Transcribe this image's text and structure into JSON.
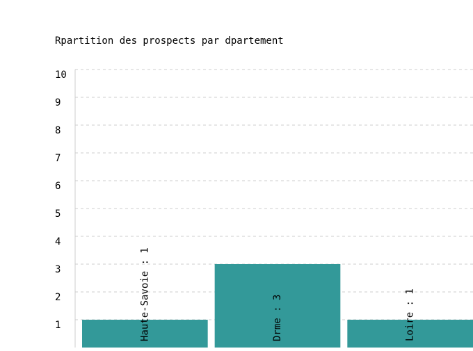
{
  "chart_data": {
    "type": "bar",
    "title": "Rpartition des prospects par dpartement",
    "xlabel": "",
    "ylabel": "",
    "categories": [
      "Haute-Savoie",
      "Drme",
      "Loire"
    ],
    "values": [
      1,
      3,
      1
    ],
    "bar_labels": [
      "Haute-Savoie : 1",
      "Drme : 3",
      "Loire : 1"
    ],
    "ylim": [
      0,
      10
    ],
    "yticks": [
      "1",
      "2",
      "3",
      "4",
      "5",
      "6",
      "7",
      "8",
      "9",
      "10"
    ],
    "grid": true,
    "bar_color": "#339999",
    "grid_color": "#cccccc",
    "text_color": "#000000"
  }
}
